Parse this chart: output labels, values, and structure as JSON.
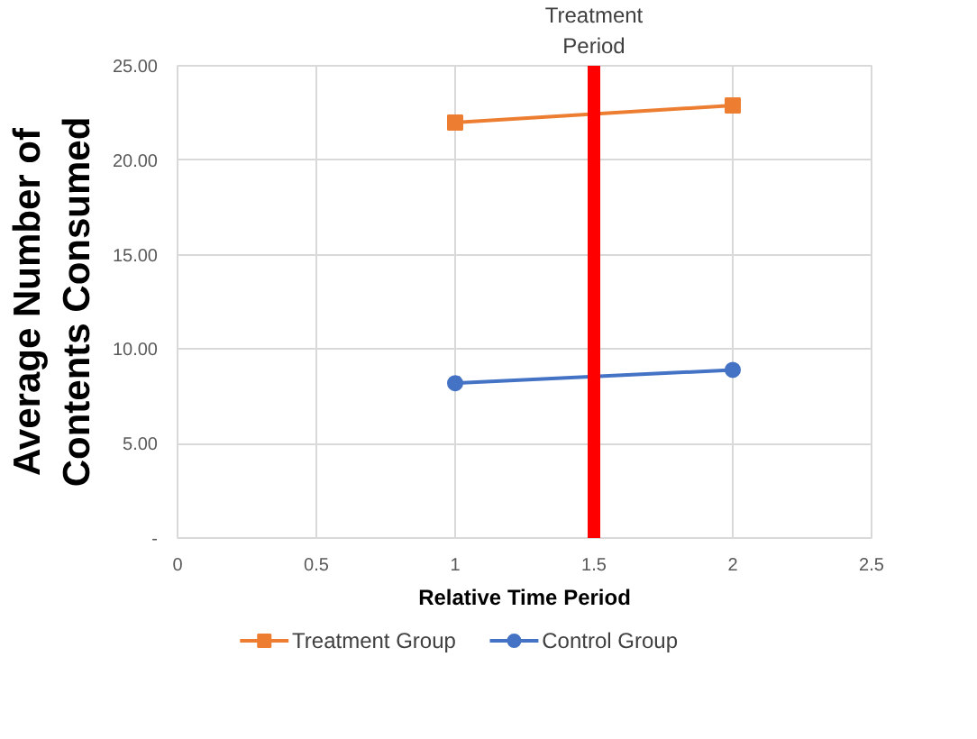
{
  "chart_data": {
    "type": "line",
    "x": [
      1,
      2
    ],
    "series": [
      {
        "name": "Treatment Group",
        "color": "#ed7d31",
        "marker": "square",
        "values": [
          22.0,
          22.9
        ]
      },
      {
        "name": "Control Group",
        "color": "#4472c4",
        "marker": "circle",
        "values": [
          8.2,
          8.9
        ]
      }
    ],
    "xlabel": "Relative Time Period",
    "ylabel": "Average Number of\nContents Consumed",
    "xlim": [
      0,
      2.5
    ],
    "xticks": [
      0,
      0.5,
      1,
      1.5,
      2,
      2.5
    ],
    "ylim": [
      0,
      25
    ],
    "yticks": [
      {
        "value": 0,
        "label": "-"
      },
      {
        "value": 5,
        "label": "5.00"
      },
      {
        "value": 10,
        "label": "10.00"
      },
      {
        "value": 15,
        "label": "15.00"
      },
      {
        "value": 20,
        "label": "20.00"
      },
      {
        "value": 25,
        "label": "25.00"
      }
    ],
    "ref_lines": [
      {
        "axis": "x",
        "value": 1.5,
        "label": "Treatment\nPeriod",
        "color": "#ff0000"
      }
    ],
    "grid": true,
    "legend": "bottom",
    "line_style": "solid"
  }
}
